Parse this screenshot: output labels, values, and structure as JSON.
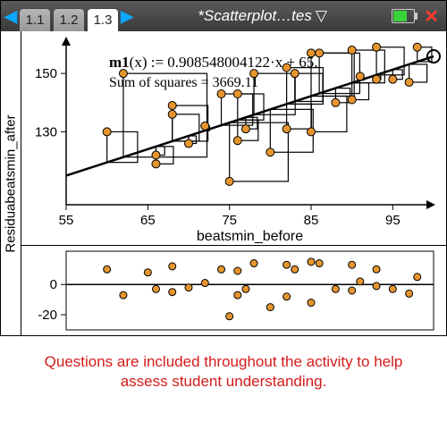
{
  "titlebar": {
    "tabs": [
      "1.1",
      "1.2",
      "1.3"
    ],
    "active_tab": 2,
    "doc_title": "*Scatterplot…tes"
  },
  "scatter": {
    "type": "scatter",
    "xlabel": "beatsmin_before",
    "equation_prefix": "m1",
    "equation_text": "(x) := 0.908548004122·x + 65.",
    "sum_of_squares_label": "Sum of squares = 3669.11",
    "xlim": [
      55,
      100
    ],
    "ylim": [
      105,
      162
    ],
    "xticks": [
      55,
      65,
      75,
      85,
      95
    ],
    "yticks": [
      130,
      150
    ],
    "line_slope": 0.908548004122,
    "line_intercept": 65.0,
    "point_fill": "#e6952e",
    "point_stroke": "#000000",
    "point_r": 4.5,
    "line_color": "#000000",
    "line_width": 2.5,
    "square_stroke": "#000000",
    "square_width": 1.2,
    "points": [
      {
        "x": 60,
        "y": 130
      },
      {
        "x": 62,
        "y": 150
      },
      {
        "x": 66,
        "y": 119
      },
      {
        "x": 66,
        "y": 122
      },
      {
        "x": 68,
        "y": 136
      },
      {
        "x": 68,
        "y": 139
      },
      {
        "x": 70,
        "y": 126
      },
      {
        "x": 72,
        "y": 132
      },
      {
        "x": 74,
        "y": 143
      },
      {
        "x": 75,
        "y": 113
      },
      {
        "x": 76,
        "y": 127
      },
      {
        "x": 76,
        "y": 143
      },
      {
        "x": 77,
        "y": 131
      },
      {
        "x": 78,
        "y": 150
      },
      {
        "x": 80,
        "y": 123
      },
      {
        "x": 82,
        "y": 131
      },
      {
        "x": 82,
        "y": 152
      },
      {
        "x": 83,
        "y": 150
      },
      {
        "x": 85,
        "y": 157
      },
      {
        "x": 85,
        "y": 130
      },
      {
        "x": 86,
        "y": 157
      },
      {
        "x": 88,
        "y": 140
      },
      {
        "x": 90,
        "y": 141
      },
      {
        "x": 90,
        "y": 158
      },
      {
        "x": 91,
        "y": 149
      },
      {
        "x": 93,
        "y": 148
      },
      {
        "x": 93,
        "y": 159
      },
      {
        "x": 95,
        "y": 148
      },
      {
        "x": 97,
        "y": 147
      },
      {
        "x": 98,
        "y": 159
      }
    ]
  },
  "residual": {
    "type": "scatter",
    "ylim": [
      -30,
      22
    ],
    "yticks": [
      -20,
      0
    ],
    "point_fill": "#e6952e",
    "point_stroke": "#000000",
    "point_r": 4,
    "zero_line_color": "#000000",
    "points": [
      {
        "x": 60,
        "y": 10
      },
      {
        "x": 62,
        "y": -7
      },
      {
        "x": 65,
        "y": 8
      },
      {
        "x": 66,
        "y": -3
      },
      {
        "x": 68,
        "y": -5
      },
      {
        "x": 68,
        "y": 12
      },
      {
        "x": 70,
        "y": -2
      },
      {
        "x": 72,
        "y": 1
      },
      {
        "x": 74,
        "y": 10
      },
      {
        "x": 75,
        "y": -21
      },
      {
        "x": 76,
        "y": -7
      },
      {
        "x": 76,
        "y": 9
      },
      {
        "x": 77,
        "y": -3
      },
      {
        "x": 78,
        "y": 14
      },
      {
        "x": 80,
        "y": -15
      },
      {
        "x": 82,
        "y": -8
      },
      {
        "x": 82,
        "y": 13
      },
      {
        "x": 83,
        "y": 10
      },
      {
        "x": 85,
        "y": 15
      },
      {
        "x": 85,
        "y": -12
      },
      {
        "x": 86,
        "y": 14
      },
      {
        "x": 88,
        "y": -3
      },
      {
        "x": 90,
        "y": -4
      },
      {
        "x": 90,
        "y": 13
      },
      {
        "x": 91,
        "y": 2
      },
      {
        "x": 93,
        "y": -1
      },
      {
        "x": 93,
        "y": 10
      },
      {
        "x": 95,
        "y": -3
      },
      {
        "x": 97,
        "y": -6
      },
      {
        "x": 98,
        "y": 5
      }
    ]
  },
  "ylabel": "Residuabeatsmin_after",
  "caption": "Questions are included throughout the activity to help assess student understanding."
}
